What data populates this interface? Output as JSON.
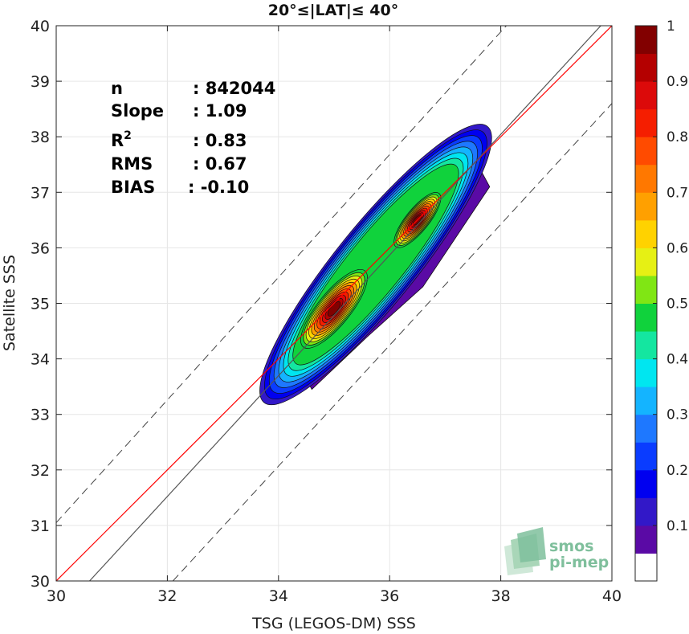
{
  "chart_data": {
    "type": "density_contour_scatter",
    "title": "20°≤|LAT|≤ 40°",
    "xlabel": "TSG (LEGOS-DM) SSS",
    "ylabel": "Satellite SSS",
    "xlim": [
      30,
      40
    ],
    "ylim": [
      30,
      40
    ],
    "x_ticks": [
      "30",
      "32",
      "34",
      "36",
      "38",
      "40"
    ],
    "y_ticks": [
      "30",
      "31",
      "32",
      "33",
      "34",
      "35",
      "36",
      "37",
      "38",
      "39",
      "40"
    ],
    "grid": true,
    "lines": [
      {
        "name": "identity",
        "kind": "solid",
        "color": "#ff0000",
        "points": [
          [
            30,
            30
          ],
          [
            40,
            40
          ]
        ]
      },
      {
        "name": "regression",
        "kind": "solid",
        "color": "#555555",
        "slope": 1.09,
        "points": [
          [
            30.6,
            30
          ],
          [
            39.8,
            40
          ]
        ]
      },
      {
        "name": "upper-bound",
        "kind": "dashed",
        "color": "#444444",
        "points": [
          [
            30,
            31.05
          ],
          [
            38.1,
            40
          ]
        ]
      },
      {
        "name": "lower-bound",
        "kind": "dashed",
        "color": "#444444",
        "points": [
          [
            32.1,
            30
          ],
          [
            40,
            38.6
          ]
        ]
      }
    ],
    "density_peaks": [
      {
        "x": 35.0,
        "y": 34.9,
        "value": 1.0
      },
      {
        "x": 36.5,
        "y": 36.5,
        "value": 0.95
      }
    ],
    "stats": [
      {
        "label": "n",
        "sup": "",
        "value": ": 842044"
      },
      {
        "label": "Slope",
        "sup": "",
        "value": ": 1.09"
      },
      {
        "label": "R",
        "sup": "2",
        "value": ": 0.83"
      },
      {
        "label": "RMS",
        "sup": "",
        "value": ": 0.67"
      },
      {
        "label": "BIAS",
        "sup": "",
        "value": ": -0.10"
      }
    ],
    "colorbar": {
      "ticks": [
        "0.1",
        "0.2",
        "0.3",
        "0.4",
        "0.5",
        "0.6",
        "0.7",
        "0.8",
        "0.9",
        "1"
      ],
      "colors": [
        "#ffffff",
        "#5a0aa5",
        "#3218c8",
        "#0000f0",
        "#0a3cff",
        "#1e78ff",
        "#14b4ff",
        "#00e6f0",
        "#14e6a0",
        "#10d23c",
        "#80e614",
        "#e6f014",
        "#ffd200",
        "#ffa000",
        "#ff7800",
        "#ff4b00",
        "#f51e00",
        "#dc0a0a",
        "#b40000",
        "#820000"
      ]
    }
  },
  "logo": {
    "line1": "smos",
    "line2": "pi-mep"
  }
}
